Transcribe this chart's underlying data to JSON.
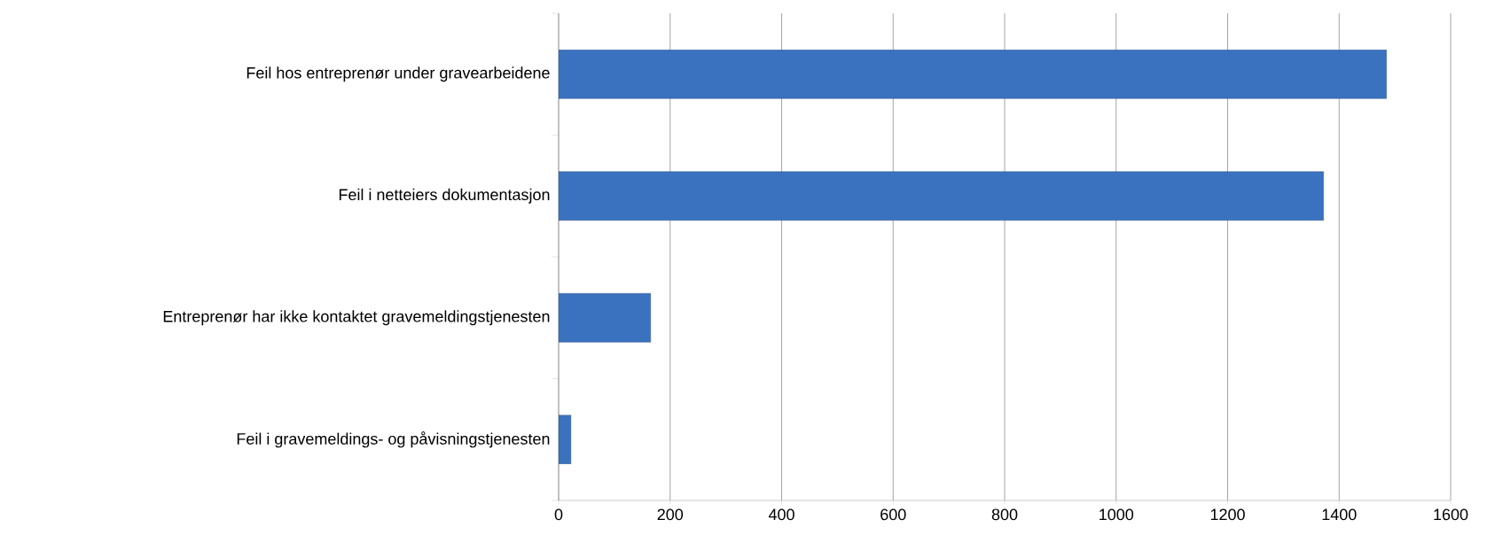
{
  "chart_data": {
    "type": "bar",
    "orientation": "horizontal",
    "categories": [
      "Feil hos entreprenør under gravearbeidene",
      "Feil i netteiers dokumentasjon",
      "Entreprenør har ikke kontaktet gravemeldingstjenesten",
      "Feil i gravemeldings- og påvisningstjenesten"
    ],
    "values": [
      1485,
      1372,
      165,
      22
    ],
    "color": "#3a72bf",
    "xlim": [
      0,
      1600
    ],
    "xticks": [
      0,
      200,
      400,
      600,
      800,
      1000,
      1200,
      1400,
      1600
    ],
    "grid": "x"
  }
}
